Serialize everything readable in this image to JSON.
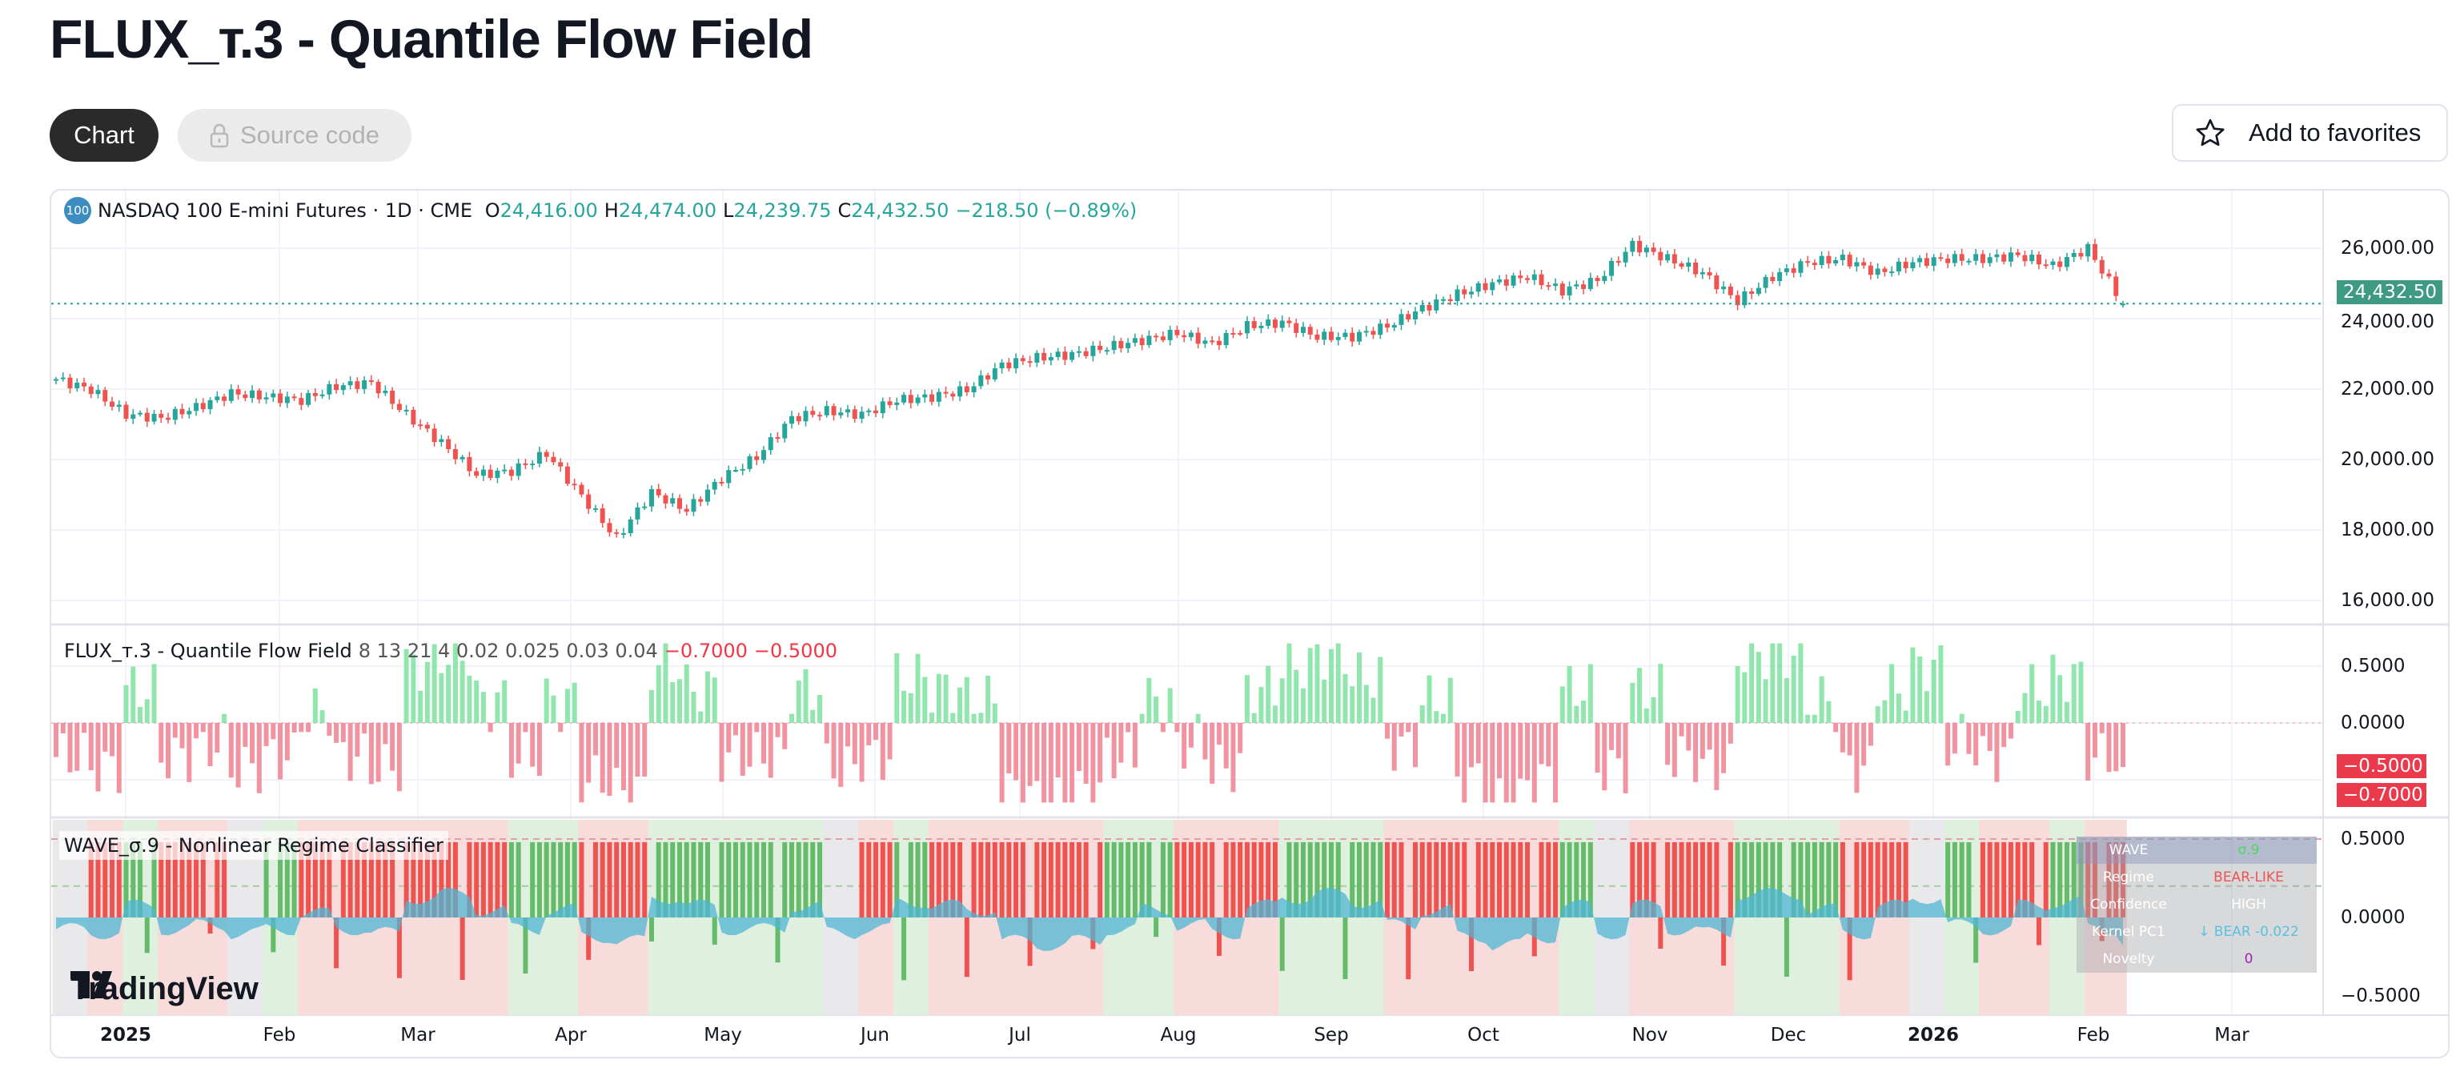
{
  "page": {
    "title": "FLUX_т.3 - Quantile Flow Field",
    "tabs": {
      "chart": "Chart",
      "source": "Source code"
    },
    "favorites": "Add to favorites"
  },
  "legend": {
    "badge": "100",
    "symbol": "NASDAQ 100 E-mini Futures · 1D · CME",
    "o_label": "O",
    "o": "24,416.00",
    "h_label": "H",
    "h": "24,474.00",
    "l_label": "L",
    "l": "24,239.75",
    "c_label": "C",
    "c": "24,432.50",
    "change": "−218.50 (−0.89%)"
  },
  "flux_legend": {
    "name": "FLUX_т.3 - Quantile Flow Field",
    "params": "8 13 21 4 0.02 0.025 0.03 0.04",
    "v1": "−0.7000",
    "v2": "−0.5000"
  },
  "wave_legend": {
    "name": "WAVE_σ.9 - Nonlinear Regime Classifier"
  },
  "price_axis": [
    "26,000.00",
    "24,000.00",
    "22,000.00",
    "20,000.00",
    "18,000.00",
    "16,000.00"
  ],
  "last_price": "24,432.50",
  "flux_axis": {
    "t1": "0.5000",
    "t0": "0.0000",
    "tag1": "−0.5000",
    "tag2": "−0.7000"
  },
  "wave_axis": {
    "t1": "0.5000",
    "t0": "0.0000",
    "t2": "−0.5000"
  },
  "time_axis": [
    "2025",
    "Feb",
    "Mar",
    "Apr",
    "May",
    "Jun",
    "Jul",
    "Aug",
    "Sep",
    "Oct",
    "Nov",
    "Dec",
    "2026",
    "Feb",
    "Mar"
  ],
  "wave_table": [
    {
      "k": "WAVE",
      "v": "σ.9",
      "color": "#4cd964"
    },
    {
      "k": "Regime",
      "v": "BEAR-LIKE",
      "color": "#ef5350"
    },
    {
      "k": "Confidence",
      "v": "HIGH",
      "color": "#ffffff"
    },
    {
      "k": "Kernel PC1",
      "v": "↓ BEAR -0.022",
      "color": "#5bc0de"
    },
    {
      "k": "Novelty",
      "v": "0",
      "color": "#9c27b0"
    }
  ],
  "watermark": "TradingView",
  "colors": {
    "up": "#26a69a",
    "down": "#ef5350",
    "flux_up": "#7ee2a0",
    "flux_down": "#f08090",
    "bull": "#66bb6a",
    "bear": "#ef5350",
    "bull_bg": "#dff0df",
    "bear_bg": "#f8dcdc",
    "neutral_bg": "#e9e9ec",
    "kernel": "#4fb6d4"
  },
  "chart_data": {
    "type": "candlestick",
    "interval": "1D",
    "weekly_closes": [
      22300,
      22000,
      21300,
      21200,
      21500,
      21900,
      21800,
      21700,
      22100,
      22200,
      21300,
      20500,
      19600,
      19700,
      20200,
      19000,
      17800,
      19100,
      18600,
      19500,
      20100,
      21200,
      21400,
      21300,
      21700,
      21800,
      22000,
      22700,
      22900,
      23000,
      23200,
      23400,
      23600,
      23300,
      23800,
      23900,
      23500,
      23500,
      23800,
      24300,
      24700,
      25000,
      25200,
      24800,
      25100,
      26100,
      25700,
      25300,
      24500,
      25200,
      25600,
      25700,
      25300,
      25600,
      25700,
      25700,
      25800,
      25500,
      26000,
      24432.5
    ],
    "price_range": [
      15600,
      26600
    ],
    "flux_weekly": [
      -0.3,
      -0.4,
      0.3,
      -0.3,
      -0.2,
      -0.4,
      -0.3,
      0.1,
      -0.3,
      -0.4,
      0.5,
      0.6,
      0.2,
      -0.3,
      0.2,
      -0.5,
      -0.6,
      0.5,
      0.3,
      -0.3,
      -0.3,
      0.3,
      -0.4,
      -0.3,
      0.4,
      0.3,
      0.2,
      -0.6,
      -0.7,
      -0.6,
      -0.3,
      0.2,
      -0.2,
      -0.4,
      0.3,
      0.5,
      0.6,
      0.4,
      -0.2,
      0.2,
      -0.5,
      -0.7,
      -0.5,
      0.3,
      -0.4,
      0.3,
      -0.3,
      -0.4,
      0.6,
      0.6,
      0.2,
      -0.4,
      0.3,
      0.5,
      -0.2,
      -0.3,
      0.3,
      0.4,
      -0.3,
      -0.6
    ],
    "flux_range": [
      -0.7,
      0.7
    ],
    "regime_weekly": [
      "n",
      "r",
      "g",
      "r",
      "r",
      "n",
      "g",
      "r",
      "r",
      "r",
      "r",
      "r",
      "r",
      "g",
      "g",
      "r",
      "r",
      "g",
      "g",
      "g",
      "g",
      "g",
      "n",
      "r",
      "g",
      "r",
      "r",
      "r",
      "r",
      "r",
      "g",
      "g",
      "r",
      "r",
      "r",
      "g",
      "g",
      "g",
      "r",
      "r",
      "r",
      "r",
      "r",
      "g",
      "n",
      "r",
      "r",
      "r",
      "g",
      "g",
      "g",
      "r",
      "r",
      "n",
      "g",
      "r",
      "r",
      "g",
      "r",
      "r"
    ],
    "wave_range": [
      -0.6,
      0.6
    ]
  }
}
